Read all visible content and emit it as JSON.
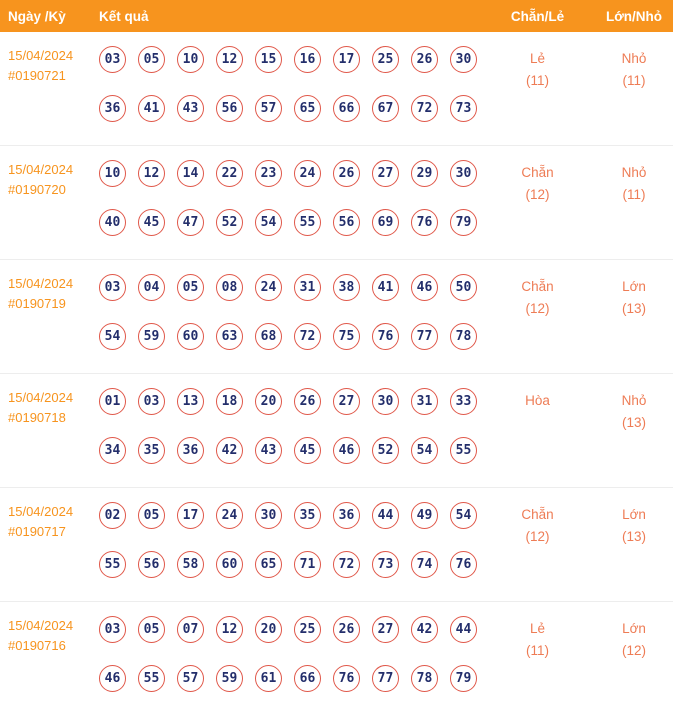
{
  "header": {
    "col_date": "Ngày /Kỳ",
    "col_result": "Kết quả",
    "col_evenodd": "Chẵn/Lẻ",
    "col_bigsmall": "Lớn/Nhỏ"
  },
  "rows": [
    {
      "date": "15/04/2024",
      "draw_id": "#0190721",
      "numbers_line1": [
        "03",
        "05",
        "10",
        "12",
        "15",
        "16",
        "17",
        "25",
        "26",
        "30"
      ],
      "numbers_line2": [
        "36",
        "41",
        "43",
        "56",
        "57",
        "65",
        "66",
        "67",
        "72",
        "73"
      ],
      "evenodd": "Lẻ",
      "evenodd_count": "(11)",
      "bigsmall": "Nhỏ",
      "bigsmall_count": "(11)"
    },
    {
      "date": "15/04/2024",
      "draw_id": "#0190720",
      "numbers_line1": [
        "10",
        "12",
        "14",
        "22",
        "23",
        "24",
        "26",
        "27",
        "29",
        "30"
      ],
      "numbers_line2": [
        "40",
        "45",
        "47",
        "52",
        "54",
        "55",
        "56",
        "69",
        "76",
        "79"
      ],
      "evenodd": "Chẵn",
      "evenodd_count": "(12)",
      "bigsmall": "Nhỏ",
      "bigsmall_count": "(11)"
    },
    {
      "date": "15/04/2024",
      "draw_id": "#0190719",
      "numbers_line1": [
        "03",
        "04",
        "05",
        "08",
        "24",
        "31",
        "38",
        "41",
        "46",
        "50"
      ],
      "numbers_line2": [
        "54",
        "59",
        "60",
        "63",
        "68",
        "72",
        "75",
        "76",
        "77",
        "78"
      ],
      "evenodd": "Chẵn",
      "evenodd_count": "(12)",
      "bigsmall": "Lớn",
      "bigsmall_count": "(13)"
    },
    {
      "date": "15/04/2024",
      "draw_id": "#0190718",
      "numbers_line1": [
        "01",
        "03",
        "13",
        "18",
        "20",
        "26",
        "27",
        "30",
        "31",
        "33"
      ],
      "numbers_line2": [
        "34",
        "35",
        "36",
        "42",
        "43",
        "45",
        "46",
        "52",
        "54",
        "55"
      ],
      "evenodd": "Hòa",
      "evenodd_count": "",
      "bigsmall": "Nhỏ",
      "bigsmall_count": "(13)"
    },
    {
      "date": "15/04/2024",
      "draw_id": "#0190717",
      "numbers_line1": [
        "02",
        "05",
        "17",
        "24",
        "30",
        "35",
        "36",
        "44",
        "49",
        "54"
      ],
      "numbers_line2": [
        "55",
        "56",
        "58",
        "60",
        "65",
        "71",
        "72",
        "73",
        "74",
        "76"
      ],
      "evenodd": "Chẵn",
      "evenodd_count": "(12)",
      "bigsmall": "Lớn",
      "bigsmall_count": "(13)"
    },
    {
      "date": "15/04/2024",
      "draw_id": "#0190716",
      "numbers_line1": [
        "03",
        "05",
        "07",
        "12",
        "20",
        "25",
        "26",
        "27",
        "42",
        "44"
      ],
      "numbers_line2": [
        "46",
        "55",
        "57",
        "59",
        "61",
        "66",
        "76",
        "77",
        "78",
        "79"
      ],
      "evenodd": "Lẻ",
      "evenodd_count": "(11)",
      "bigsmall": "Lớn",
      "bigsmall_count": "(12)"
    }
  ],
  "colors": {
    "header_bg": "#f7941e",
    "header_text": "#ffffff",
    "date_text": "#f7941e",
    "stat_text": "#ee7c55",
    "ball_border": "#e0584a",
    "ball_number": "#232e6b",
    "row_divider": "#ededed"
  }
}
